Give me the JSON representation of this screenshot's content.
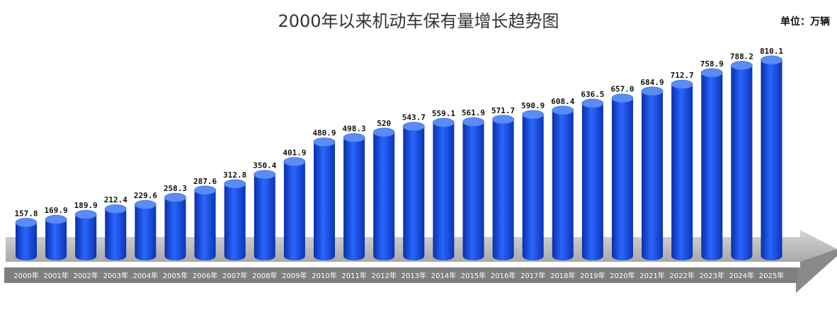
{
  "chart_data": {
    "type": "bar",
    "title": "2000年以来机动车保有量增长趋势图",
    "unit_label": "单位：万辆",
    "categories": [
      "2000年",
      "2001年",
      "2002年",
      "2003年",
      "2004年",
      "2005年",
      "2006年",
      "2007年",
      "2008年",
      "2009年",
      "2010年",
      "2011年",
      "2012年",
      "2013年",
      "2014年",
      "2015年",
      "2016年",
      "2017年",
      "2018年",
      "2019年",
      "2020年",
      "2021年",
      "2022年",
      "2023年",
      "2024年",
      "2025年"
    ],
    "values": [
      157.8,
      169.9,
      189.9,
      212.4,
      229.6,
      258.3,
      287.6,
      312.8,
      350.4,
      401.9,
      480.9,
      498.3,
      520,
      543.7,
      559.1,
      561.9,
      571.7,
      590.9,
      608.4,
      636.5,
      657.0,
      684.9,
      712.7,
      758.9,
      788.2,
      810.1
    ],
    "value_labels": [
      "157.8",
      "169.9",
      "189.9",
      "212.4",
      "229.6",
      "258.3",
      "287.6",
      "312.8",
      "350.4",
      "401.9",
      "480.9",
      "498.3",
      "520",
      "543.7",
      "559.1",
      "561.9",
      "571.7",
      "590.9",
      "608.4",
      "636.5",
      "657.0",
      "684.9",
      "712.7",
      "758.9",
      "788.2",
      "810.1"
    ],
    "bar_style": "3d-cylinder",
    "colors": {
      "bar": "#1a55e6",
      "bar_top": "#5b8cf5",
      "arrow": "#b7b7b7",
      "axis_band": "#808080"
    },
    "grid": false,
    "legend": "none"
  }
}
